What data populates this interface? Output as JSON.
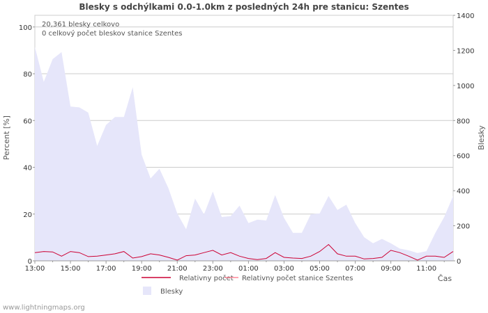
{
  "watermark": "www.lightningmaps.org",
  "chart_data": {
    "type": "area",
    "title": "Blesky s odchýlkami 0.0-1.0km z posledných 24h pre stanicu: Szentes",
    "ylabel_left": "Percent   [%]",
    "ylabel_right": "Blesky",
    "xlabel": "Čas",
    "annotations": [
      "20,361 blesky celkovo",
      "0 celkový počet bleskov stanice Szentes"
    ],
    "ylim_left": [
      0,
      105
    ],
    "ylim_right": [
      0,
      1400
    ],
    "yticks_left": [
      0,
      20,
      40,
      60,
      80,
      100
    ],
    "yticks_right": [
      0,
      200,
      400,
      600,
      800,
      1000,
      1200,
      1400
    ],
    "x_tick_labels": [
      "13:00",
      "15:00",
      "17:00",
      "19:00",
      "21:00",
      "23:00",
      "01:00",
      "03:00",
      "05:00",
      "07:00",
      "09:00",
      "11:00"
    ],
    "legend": [
      {
        "label": "Relativny počet",
        "color": "#cc0033",
        "kind": "line"
      },
      {
        "label": "Relativny počet stanice Szentes",
        "color": "#ff8899",
        "kind": "line"
      },
      {
        "label": "Blesky",
        "color": "#e6e6fa",
        "kind": "area"
      }
    ],
    "series": [
      {
        "name": "Blesky",
        "axis": "right",
        "color": "#e6e6fa",
        "values": [
          1220,
          1020,
          1150,
          1190,
          880,
          875,
          845,
          655,
          775,
          820,
          820,
          990,
          605,
          470,
          525,
          415,
          270,
          180,
          355,
          265,
          395,
          250,
          255,
          315,
          215,
          235,
          230,
          375,
          245,
          160,
          160,
          265,
          270,
          370,
          290,
          320,
          215,
          135,
          100,
          125,
          100,
          70,
          60,
          45,
          55,
          160,
          250,
          370
        ]
      },
      {
        "name": "Relativny počet",
        "axis": "left",
        "color": "#cc0033",
        "values": [
          3.5,
          4,
          3.8,
          2,
          4,
          3.5,
          1.8,
          2,
          2.5,
          3,
          4,
          1.2,
          1.8,
          3,
          2.5,
          1.5,
          0.3,
          2.2,
          2.5,
          3.5,
          4.5,
          2.5,
          3.5,
          2,
          1,
          0.5,
          1,
          3.5,
          1.5,
          1.2,
          1,
          2,
          4,
          7,
          3,
          2,
          2,
          0.8,
          1,
          1.5,
          4.5,
          3.5,
          2,
          0.3,
          2,
          2,
          1.5,
          4
        ]
      },
      {
        "name": "Relativny počet stanice Szentes",
        "axis": "left",
        "color": "#ff8899",
        "values": []
      }
    ]
  }
}
